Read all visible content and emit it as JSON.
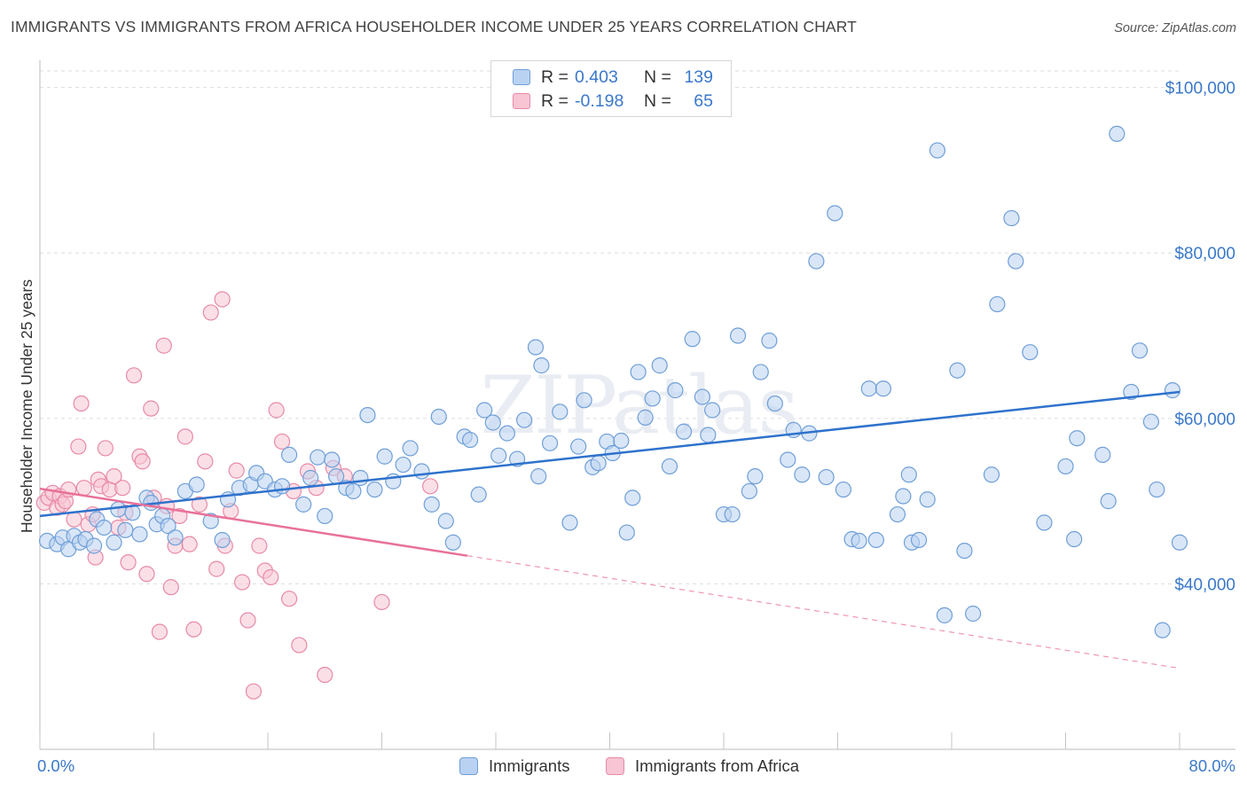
{
  "title": "IMMIGRANTS VS IMMIGRANTS FROM AFRICA HOUSEHOLDER INCOME UNDER 25 YEARS CORRELATION CHART",
  "source": "Source: ZipAtlas.com",
  "watermark": "ZIPatlas",
  "colors": {
    "blue_fill": "#b9d2f1",
    "blue_stroke": "#6f9fd8",
    "blue_line": "#2e72cc",
    "pink_fill": "#f7c5d3",
    "pink_stroke": "#e88aa6",
    "pink_line": "#e8719a",
    "axis_text": "#3a78c9",
    "grid": "#dddddd"
  },
  "legend": {
    "rows": [
      {
        "r_label": "R =",
        "r_value": "0.403",
        "n_label": "N =",
        "n_value": "139"
      },
      {
        "r_label": "R =",
        "r_value": "-0.198",
        "n_label": "N =",
        "n_value": "65"
      }
    ]
  },
  "bottom_legend": {
    "series1": "Immigrants",
    "series2": "Immigrants from Africa"
  },
  "chart_data": {
    "type": "scatter",
    "title": "IMMIGRANTS VS IMMIGRANTS FROM AFRICA HOUSEHOLDER INCOME UNDER 25 YEARS CORRELATION CHART",
    "xlabel": "",
    "ylabel": "Householder Income Under 25 years",
    "xlim": [
      0,
      80
    ],
    "ylim": [
      20000,
      102000
    ],
    "x_tick_labels": [
      "0.0%",
      "80.0%"
    ],
    "y_ticks": [
      40000,
      60000,
      80000,
      100000
    ],
    "y_tick_labels": [
      "$40,000",
      "$60,000",
      "$80,000",
      "$100,000"
    ],
    "grid": true,
    "legend_position": "top-center",
    "series": [
      {
        "name": "Immigrants",
        "trend": {
          "x": [
            0,
            80
          ],
          "y": [
            48200,
            63200
          ]
        },
        "points": [
          [
            0.5,
            45200
          ],
          [
            1.2,
            44800
          ],
          [
            1.6,
            45600
          ],
          [
            2.0,
            44200
          ],
          [
            2.4,
            45800
          ],
          [
            2.8,
            45000
          ],
          [
            3.2,
            45400
          ],
          [
            3.8,
            44600
          ],
          [
            4.0,
            47800
          ],
          [
            4.5,
            46800
          ],
          [
            5.2,
            45000
          ],
          [
            5.5,
            49000
          ],
          [
            6.0,
            46500
          ],
          [
            6.5,
            48600
          ],
          [
            7.0,
            46000
          ],
          [
            7.5,
            50400
          ],
          [
            7.8,
            49800
          ],
          [
            8.2,
            47200
          ],
          [
            8.6,
            48200
          ],
          [
            9.0,
            47000
          ],
          [
            9.5,
            45600
          ],
          [
            10.2,
            51200
          ],
          [
            11.0,
            52000
          ],
          [
            12.0,
            47600
          ],
          [
            12.8,
            45300
          ],
          [
            14.0,
            51600
          ],
          [
            14.8,
            52000
          ],
          [
            15.2,
            53400
          ],
          [
            15.8,
            52400
          ],
          [
            16.5,
            51400
          ],
          [
            17.0,
            51800
          ],
          [
            17.5,
            55600
          ],
          [
            18.5,
            49600
          ],
          [
            19.0,
            52800
          ],
          [
            19.5,
            55300
          ],
          [
            20.0,
            48200
          ],
          [
            20.8,
            53000
          ],
          [
            21.5,
            51600
          ],
          [
            22.0,
            51200
          ],
          [
            22.5,
            52800
          ],
          [
            23.0,
            60400
          ],
          [
            23.5,
            51400
          ],
          [
            24.2,
            55400
          ],
          [
            24.8,
            52400
          ],
          [
            25.5,
            54400
          ],
          [
            26.0,
            56400
          ],
          [
            26.8,
            53600
          ],
          [
            27.5,
            49600
          ],
          [
            28.0,
            60200
          ],
          [
            28.5,
            47600
          ],
          [
            29.0,
            45000
          ],
          [
            29.8,
            57800
          ],
          [
            30.2,
            57400
          ],
          [
            30.8,
            50800
          ],
          [
            31.2,
            61000
          ],
          [
            31.8,
            59500
          ],
          [
            32.2,
            55500
          ],
          [
            32.8,
            58200
          ],
          [
            33.5,
            55100
          ],
          [
            34.0,
            59800
          ],
          [
            34.8,
            68600
          ],
          [
            35.2,
            66400
          ],
          [
            35.8,
            57000
          ],
          [
            36.5,
            60800
          ],
          [
            37.2,
            47400
          ],
          [
            37.8,
            56600
          ],
          [
            38.2,
            62200
          ],
          [
            38.8,
            54100
          ],
          [
            39.2,
            54600
          ],
          [
            39.8,
            57200
          ],
          [
            40.2,
            55800
          ],
          [
            40.8,
            57300
          ],
          [
            41.2,
            46200
          ],
          [
            42.0,
            65600
          ],
          [
            42.5,
            60100
          ],
          [
            43.0,
            62400
          ],
          [
            43.5,
            66400
          ],
          [
            44.2,
            54200
          ],
          [
            44.6,
            63400
          ],
          [
            45.2,
            58400
          ],
          [
            45.8,
            69600
          ],
          [
            46.5,
            62600
          ],
          [
            46.9,
            58000
          ],
          [
            47.2,
            61000
          ],
          [
            48.0,
            48400
          ],
          [
            48.6,
            48400
          ],
          [
            49.0,
            70000
          ],
          [
            49.8,
            51200
          ],
          [
            50.2,
            53000
          ],
          [
            50.6,
            65600
          ],
          [
            51.2,
            69400
          ],
          [
            51.6,
            61800
          ],
          [
            52.5,
            55000
          ],
          [
            52.9,
            58600
          ],
          [
            53.5,
            53200
          ],
          [
            54.0,
            58200
          ],
          [
            54.5,
            79000
          ],
          [
            55.2,
            52900
          ],
          [
            55.8,
            84800
          ],
          [
            56.4,
            51400
          ],
          [
            57.0,
            45400
          ],
          [
            57.5,
            45200
          ],
          [
            58.2,
            63600
          ],
          [
            58.7,
            45300
          ],
          [
            59.2,
            63600
          ],
          [
            60.2,
            48400
          ],
          [
            60.6,
            50600
          ],
          [
            61.2,
            45000
          ],
          [
            61.7,
            45300
          ],
          [
            62.3,
            50200
          ],
          [
            63.0,
            92400
          ],
          [
            63.5,
            36200
          ],
          [
            64.4,
            65800
          ],
          [
            64.9,
            44000
          ],
          [
            65.5,
            36400
          ],
          [
            66.8,
            53200
          ],
          [
            67.2,
            73800
          ],
          [
            68.2,
            84200
          ],
          [
            68.5,
            79000
          ],
          [
            69.5,
            68000
          ],
          [
            70.5,
            47400
          ],
          [
            72.0,
            54200
          ],
          [
            72.6,
            45400
          ],
          [
            74.6,
            55600
          ],
          [
            75.0,
            50000
          ],
          [
            75.6,
            94400
          ],
          [
            76.6,
            63200
          ],
          [
            77.2,
            68200
          ],
          [
            78.0,
            59600
          ],
          [
            78.4,
            51400
          ],
          [
            78.8,
            34400
          ],
          [
            79.5,
            63400
          ],
          [
            80.0,
            45000
          ],
          [
            13.2,
            50200
          ],
          [
            20.5,
            55000
          ],
          [
            41.6,
            50400
          ],
          [
            35.0,
            53000
          ],
          [
            61.0,
            53200
          ],
          [
            72.8,
            57600
          ]
        ]
      },
      {
        "name": "Immigrants from Africa",
        "trend": {
          "x": [
            0,
            30
          ],
          "y": [
            51500,
            43400
          ]
        },
        "trend_extended": {
          "x": [
            30,
            80
          ],
          "y": [
            43400,
            29800
          ]
        },
        "points": [
          [
            0.3,
            49800
          ],
          [
            0.6,
            50400
          ],
          [
            0.9,
            51000
          ],
          [
            1.2,
            49200
          ],
          [
            1.4,
            50600
          ],
          [
            1.6,
            49600
          ],
          [
            1.8,
            50000
          ],
          [
            2.0,
            51400
          ],
          [
            2.4,
            47800
          ],
          [
            2.7,
            56600
          ],
          [
            2.9,
            61800
          ],
          [
            3.1,
            51600
          ],
          [
            3.4,
            47200
          ],
          [
            3.7,
            48400
          ],
          [
            3.9,
            43200
          ],
          [
            4.1,
            52600
          ],
          [
            4.3,
            51800
          ],
          [
            4.6,
            56400
          ],
          [
            4.9,
            51400
          ],
          [
            5.2,
            53000
          ],
          [
            5.5,
            46800
          ],
          [
            5.8,
            51600
          ],
          [
            6.2,
            42600
          ],
          [
            6.6,
            65200
          ],
          [
            7.0,
            55400
          ],
          [
            7.2,
            54800
          ],
          [
            7.5,
            41200
          ],
          [
            7.8,
            61200
          ],
          [
            8.0,
            50400
          ],
          [
            8.4,
            34200
          ],
          [
            8.7,
            68800
          ],
          [
            8.9,
            49400
          ],
          [
            9.2,
            39600
          ],
          [
            9.5,
            44600
          ],
          [
            9.8,
            48200
          ],
          [
            10.2,
            57800
          ],
          [
            10.5,
            44800
          ],
          [
            10.8,
            34500
          ],
          [
            11.2,
            49600
          ],
          [
            11.6,
            54800
          ],
          [
            12.0,
            72800
          ],
          [
            12.4,
            41800
          ],
          [
            12.8,
            74400
          ],
          [
            13.0,
            44600
          ],
          [
            13.4,
            48800
          ],
          [
            13.8,
            53700
          ],
          [
            14.2,
            40200
          ],
          [
            14.6,
            35600
          ],
          [
            15.0,
            27000
          ],
          [
            15.4,
            44600
          ],
          [
            15.8,
            41600
          ],
          [
            16.2,
            40800
          ],
          [
            16.6,
            61000
          ],
          [
            17.0,
            57200
          ],
          [
            17.5,
            38200
          ],
          [
            17.8,
            51200
          ],
          [
            18.2,
            32600
          ],
          [
            18.8,
            53600
          ],
          [
            19.4,
            51600
          ],
          [
            20.0,
            29000
          ],
          [
            20.6,
            54000
          ],
          [
            21.4,
            53000
          ],
          [
            24.0,
            37800
          ],
          [
            27.4,
            51800
          ],
          [
            6.0,
            48600
          ]
        ]
      }
    ]
  }
}
